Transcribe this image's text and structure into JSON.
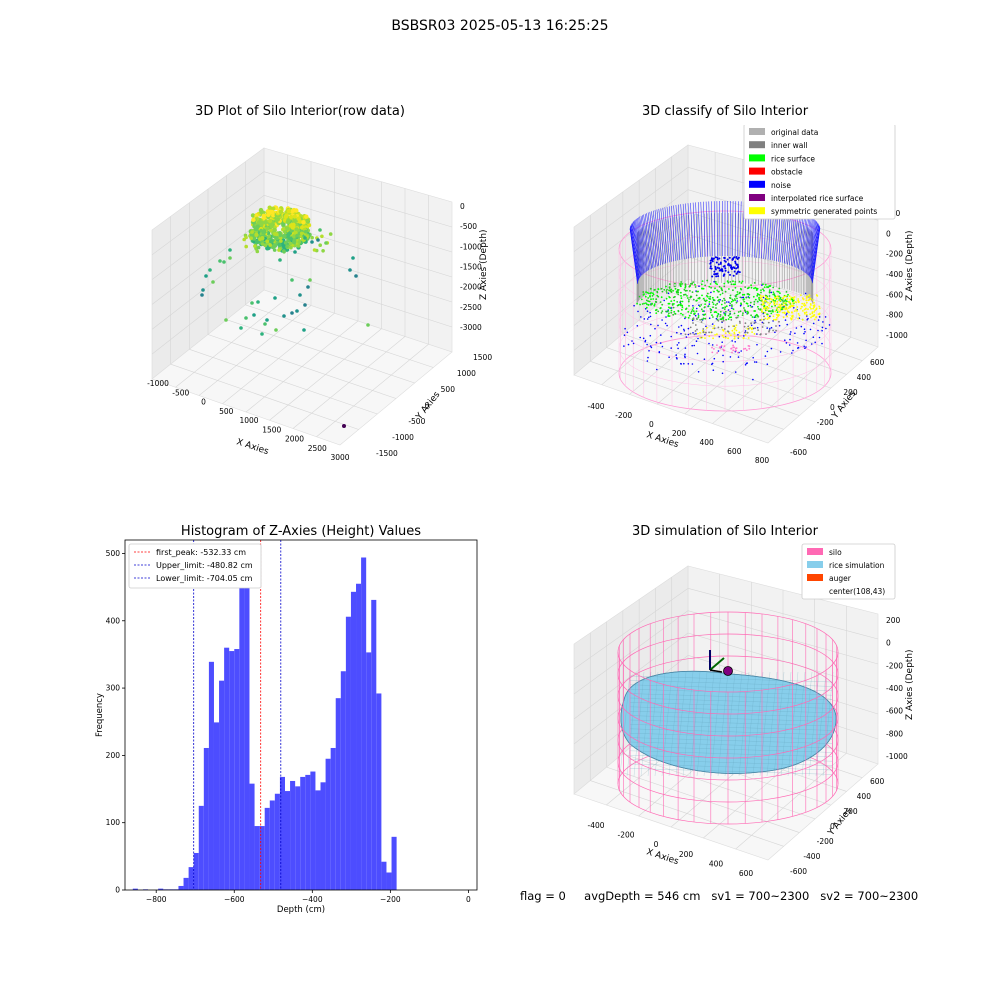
{
  "figure": {
    "suptitle": "BSBSR03 2025-05-13 16:25:25",
    "footer": {
      "flag": "flag = 0",
      "avg_depth": "avgDepth = 546 cm",
      "sv1": "sv1 = 700~2300",
      "sv2": "sv2 = 700~2300"
    }
  },
  "chart_data": [
    {
      "type": "scatter",
      "projection": "3d",
      "title": "3D Plot of Silo Interior(row data)",
      "xlabel": "X Axies",
      "ylabel": "Y Axies",
      "zlabel": "Z Axies (Depth)",
      "x_ticks": [
        "-1000",
        "-500",
        "0",
        "500",
        "1000",
        "1500",
        "2000",
        "2500",
        "3000"
      ],
      "y_ticks": [
        "-1500",
        "-1000",
        "-500",
        "0",
        "500",
        "1000",
        "1500"
      ],
      "z_ticks": [
        "0",
        "-500",
        "-1000",
        "-1500",
        "-2000",
        "-2500",
        "-3000"
      ],
      "colormap": "viridis",
      "grid": true
    },
    {
      "type": "scatter",
      "projection": "3d",
      "title": "3D classify of Silo Interior",
      "xlabel": "X Axies",
      "ylabel": "Y Axies",
      "zlabel": "Z Axies (Depth)",
      "x_ticks": [
        "-400",
        "-200",
        "0",
        "200",
        "400",
        "600",
        "800"
      ],
      "y_ticks": [
        "-600",
        "-400",
        "-200",
        "0",
        "200",
        "400",
        "600"
      ],
      "z_ticks": [
        "200",
        "0",
        "-200",
        "-400",
        "-600",
        "-800",
        "-1000"
      ],
      "legend_position": "top-right",
      "legend": [
        {
          "label": "original data",
          "color": "#b0b0b0"
        },
        {
          "label": "inner wall",
          "color": "#808080"
        },
        {
          "label": "rice surface",
          "color": "#00ff00"
        },
        {
          "label": "obstacle",
          "color": "#ff0000"
        },
        {
          "label": "noise",
          "color": "#0000ff"
        },
        {
          "label": "interpolated rice surface",
          "color": "#800080"
        },
        {
          "label": "symmetric generated points",
          "color": "#ffff00"
        }
      ],
      "grid": true
    },
    {
      "type": "bar",
      "title": "Histogram of Z-Axies (Height) Values",
      "xlabel": "Depth (cm)",
      "ylabel": "Frequency",
      "bins_start": -860,
      "bin_width": 13,
      "values": [
        2,
        0,
        1,
        0,
        0,
        2,
        1,
        1,
        1,
        6,
        18,
        34,
        55,
        125,
        211,
        339,
        249,
        311,
        360,
        355,
        358,
        464,
        464,
        158,
        95,
        95,
        122,
        133,
        143,
        168,
        147,
        162,
        154,
        168,
        171,
        176,
        148,
        160,
        195,
        211,
        285,
        325,
        406,
        443,
        455,
        494,
        353,
        431,
        292,
        42,
        26,
        79
      ],
      "xlim": [
        -880,
        22
      ],
      "ylim": [
        0,
        520
      ],
      "x_ticks": [
        "-800",
        "-600",
        "-400",
        "-200",
        "0"
      ],
      "y_ticks": [
        "0",
        "100",
        "200",
        "300",
        "400",
        "500"
      ],
      "legend_position": "top-left",
      "lines": [
        {
          "label": "first_peak: -532.33 cm",
          "x": -532.33,
          "color": "#ff0000"
        },
        {
          "label": "Upper_limit: -480.82 cm",
          "x": -480.82,
          "color": "#0000cc"
        },
        {
          "label": "Lower_limit: -704.05 cm",
          "x": -704.05,
          "color": "#0000cc"
        }
      ],
      "bar_color": "#4d4dff",
      "grid": false
    },
    {
      "type": "area",
      "projection": "3d",
      "title": "3D simulation of Silo Interior",
      "xlabel": "X Axies",
      "ylabel": "Y Axies",
      "zlabel": "Z Axies (Depth)",
      "x_ticks": [
        "-400",
        "-200",
        "0",
        "200",
        "400",
        "600"
      ],
      "y_ticks": [
        "-600",
        "-400",
        "-200",
        "0",
        "200",
        "400",
        "600"
      ],
      "z_ticks": [
        "200",
        "0",
        "-200",
        "-400",
        "-600",
        "-800",
        "-1000"
      ],
      "legend_position": "top-right",
      "legend": [
        {
          "label": "silo",
          "color": "#ff69b4"
        },
        {
          "label": "rice simulation",
          "color": "#87ceeb"
        },
        {
          "label": "auger",
          "color": "#ff4500"
        },
        {
          "label": "center(108,43)",
          "color": ""
        }
      ],
      "grid": true
    }
  ]
}
